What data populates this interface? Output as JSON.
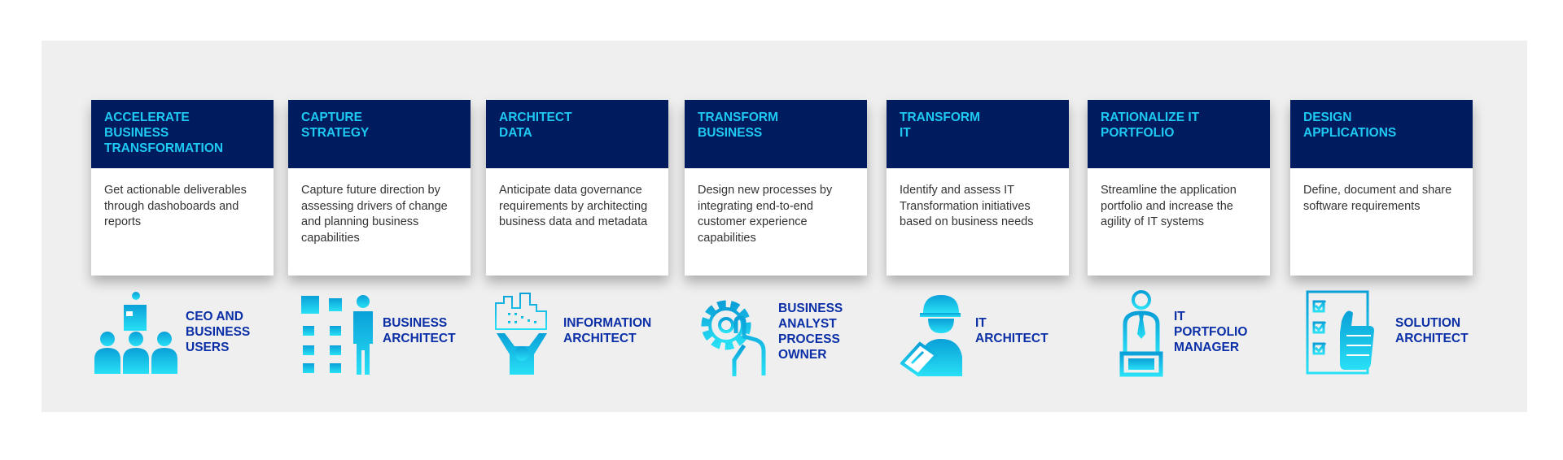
{
  "colors": {
    "header_bg": "#001c5e",
    "header_text": "#1ec9f2",
    "role_text": "#0b2fa6",
    "icon_gradient_top": "#0aa0d8",
    "icon_gradient_bottom": "#28e0f5",
    "panel_bg": "#efefef"
  },
  "columns": [
    {
      "title_lines": [
        "ACCELERATE",
        "BUSINESS",
        "TRANSFORMATION"
      ],
      "description": "Get actionable deliverables through dashoboards and reports",
      "role_lines": [
        "CEO AND",
        "BUSINESS",
        "USERS"
      ],
      "icon": "people-group-icon"
    },
    {
      "title_lines": [
        "CAPTURE",
        "STRATEGY"
      ],
      "description": "Capture future direction by assessing drivers of change and planning business capabilities",
      "role_lines": [
        "BUSINESS",
        "ARCHITECT"
      ],
      "icon": "flowchart-person-icon"
    },
    {
      "title_lines": [
        "ARCHITECT",
        "DATA"
      ],
      "description": "Anticipate data governance requirements by architecting business data and metadata",
      "role_lines": [
        "INFORMATION",
        "ARCHITECT"
      ],
      "icon": "person-holding-city-icon"
    },
    {
      "title_lines": [
        "TRANSFORM",
        "BUSINESS"
      ],
      "description": "Design new processes by integrating end-to-end customer experience capabilities",
      "role_lines": [
        "BUSINESS",
        "ANALYST",
        "PROCESS",
        "OWNER"
      ],
      "icon": "gear-hand-icon"
    },
    {
      "title_lines": [
        "TRANSFORM",
        "IT"
      ],
      "description": "Identify and assess IT Transformation initiatives based on business needs",
      "role_lines": [
        "IT",
        "ARCHITECT"
      ],
      "icon": "engineer-clipboard-icon"
    },
    {
      "title_lines": [
        "RATIONALIZE IT",
        "PORTFOLIO"
      ],
      "description": "Streamline the application portfolio and increase the agility of IT systems",
      "role_lines": [
        "IT",
        "PORTFOLIO",
        "MANAGER"
      ],
      "icon": "manager-desk-icon"
    },
    {
      "title_lines": [
        "DESIGN",
        "APPLICATIONS"
      ],
      "description": "Define, document and share software requirements",
      "role_lines": [
        "SOLUTION",
        "ARCHITECT"
      ],
      "icon": "checklist-thumbs-up-icon"
    }
  ]
}
